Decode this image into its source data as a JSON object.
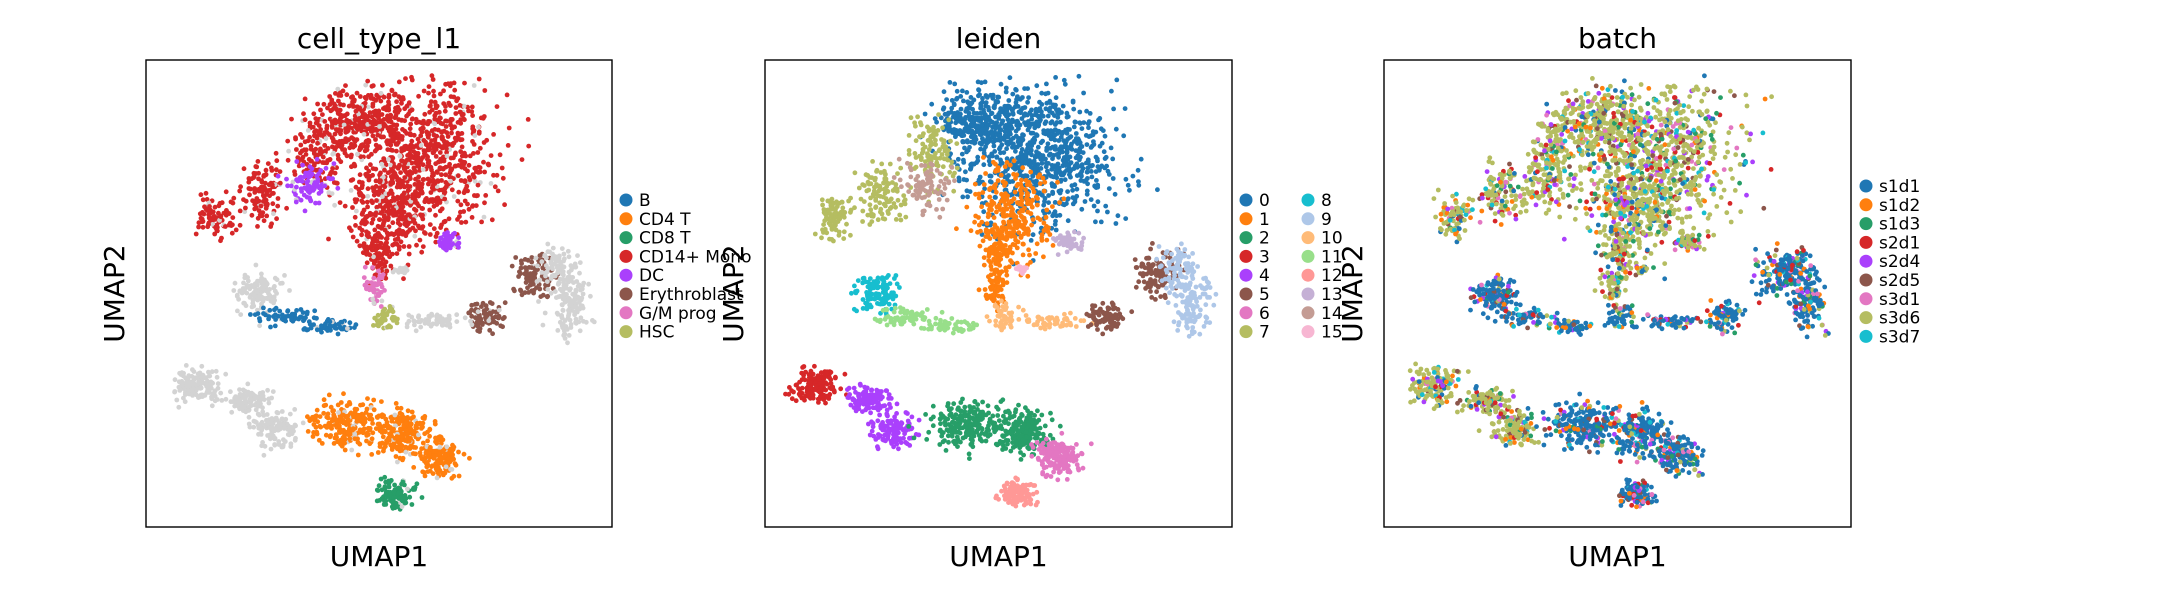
{
  "chart_data": [
    {
      "type": "scatter",
      "title": "cell_type_l1",
      "xlabel": "UMAP1",
      "ylabel": "UMAP2",
      "legend_placement": "right",
      "legend_columns": 1,
      "categories": [
        {
          "name": "B",
          "color": "#1f77b4"
        },
        {
          "name": "CD4 T",
          "color": "#ff7f0e"
        },
        {
          "name": "CD8 T",
          "color": "#279e68"
        },
        {
          "name": "CD14+ Mono",
          "color": "#d62728"
        },
        {
          "name": "DC",
          "color": "#aa40fc"
        },
        {
          "name": "Erythroblast",
          "color": "#8c564b"
        },
        {
          "name": "G/M prog",
          "color": "#e377c2"
        },
        {
          "name": "HSC",
          "color": "#b5bd61"
        }
      ]
    },
    {
      "type": "scatter",
      "title": "leiden",
      "xlabel": "UMAP1",
      "ylabel": "UMAP2",
      "legend_placement": "right",
      "legend_columns": 2,
      "categories": [
        {
          "name": "0",
          "color": "#1f77b4"
        },
        {
          "name": "1",
          "color": "#ff7f0e"
        },
        {
          "name": "2",
          "color": "#279e68"
        },
        {
          "name": "3",
          "color": "#d62728"
        },
        {
          "name": "4",
          "color": "#aa40fc"
        },
        {
          "name": "5",
          "color": "#8c564b"
        },
        {
          "name": "6",
          "color": "#e377c2"
        },
        {
          "name": "7",
          "color": "#b5bd61"
        },
        {
          "name": "8",
          "color": "#17becf"
        },
        {
          "name": "9",
          "color": "#aec7e8"
        },
        {
          "name": "10",
          "color": "#ffbb78"
        },
        {
          "name": "11",
          "color": "#98df8a"
        },
        {
          "name": "12",
          "color": "#ff9896"
        },
        {
          "name": "13",
          "color": "#c5b0d5"
        },
        {
          "name": "14",
          "color": "#c49c94"
        },
        {
          "name": "15",
          "color": "#f7b6d2"
        }
      ]
    },
    {
      "type": "scatter",
      "title": "batch",
      "xlabel": "UMAP1",
      "ylabel": "UMAP2",
      "legend_placement": "right",
      "legend_columns": 1,
      "categories": [
        {
          "name": "s1d1",
          "color": "#1f77b4"
        },
        {
          "name": "s1d2",
          "color": "#ff7f0e"
        },
        {
          "name": "s1d3",
          "color": "#279e68"
        },
        {
          "name": "s2d1",
          "color": "#d62728"
        },
        {
          "name": "s2d4",
          "color": "#aa40fc"
        },
        {
          "name": "s2d5",
          "color": "#8c564b"
        },
        {
          "name": "s3d1",
          "color": "#e377c2"
        },
        {
          "name": "s3d6",
          "color": "#b5bd61"
        },
        {
          "name": "s3d7",
          "color": "#17becf"
        }
      ]
    }
  ]
}
